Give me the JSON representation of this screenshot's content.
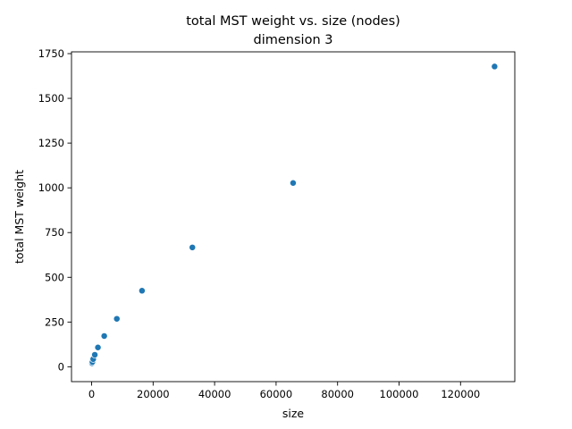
{
  "chart_data": {
    "type": "scatter",
    "title": "total MST weight vs. size (nodes)",
    "subtitle": "dimension 3",
    "xlabel": "size",
    "ylabel": "total MST weight",
    "xlim": [
      -6550,
      137650
    ],
    "ylim": [
      -83,
      1760
    ],
    "xticks": [
      0,
      20000,
      40000,
      60000,
      80000,
      100000,
      120000
    ],
    "yticks": [
      0,
      250,
      500,
      750,
      1000,
      1250,
      1500,
      1750
    ],
    "grid": false,
    "series": [
      {
        "color": "#1f77b4",
        "points": [
          {
            "x": 128,
            "y": 20
          },
          {
            "x": 256,
            "y": 27
          },
          {
            "x": 512,
            "y": 43
          },
          {
            "x": 1024,
            "y": 67
          },
          {
            "x": 2048,
            "y": 108
          },
          {
            "x": 4096,
            "y": 172
          },
          {
            "x": 8192,
            "y": 268
          },
          {
            "x": 16384,
            "y": 425
          },
          {
            "x": 32768,
            "y": 667
          },
          {
            "x": 65536,
            "y": 1027
          },
          {
            "x": 131072,
            "y": 1678
          }
        ]
      }
    ]
  }
}
